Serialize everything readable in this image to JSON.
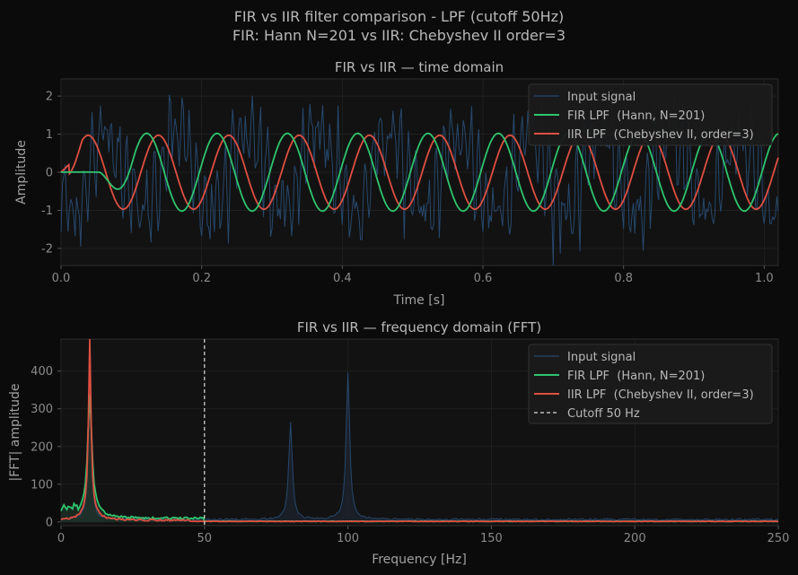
{
  "figure": {
    "suptitle_line1": "FIR vs IIR filter comparison - LPF (cutoff 50Hz)",
    "suptitle_line2": "FIR: Hann N=201  vs  IIR: Chebyshev II order=3"
  },
  "colors": {
    "background": "#0b0b0b",
    "axes_face": "#121212",
    "text": "#b8b8b8",
    "tick": "#8a8a8a",
    "input": "#27486d",
    "fir": "#2fc46e",
    "iir": "#df4f41",
    "cutoff": "#dddddd"
  },
  "chart_data": [
    {
      "type": "line",
      "title": "FIR vs IIR — time domain",
      "xlabel": "Time [s]",
      "ylabel": "Amplitude",
      "xlim": [
        0.0,
        1.02
      ],
      "ylim": [
        -2.45,
        2.45
      ],
      "xticks": [
        "0.0",
        "0.2",
        "0.4",
        "0.6",
        "0.8",
        "1.0"
      ],
      "xtick_values": [
        0.0,
        0.2,
        0.4,
        0.6,
        0.8,
        1.0
      ],
      "yticks": [
        "-2",
        "-1",
        "0",
        "1",
        "2"
      ],
      "ytick_values": [
        -2,
        -1,
        0,
        1,
        2
      ],
      "grid": true,
      "legend_position": "top-right",
      "signal_components": [
        {
          "freq_hz": 10,
          "amplitude": 1.0
        },
        {
          "freq_hz": 80,
          "amplitude": 0.5
        },
        {
          "freq_hz": 100,
          "amplitude": 0.7
        }
      ],
      "noise_std": 0.35,
      "fir_group_delay_s": 0.1,
      "series": [
        {
          "name": "Input signal",
          "color": "#27486d"
        },
        {
          "name": "FIR LPF  (Hann, N=201)",
          "color": "#2fc46e"
        },
        {
          "name": "IIR LPF  (Chebyshev II, order=3)",
          "color": "#df4f41"
        }
      ]
    },
    {
      "type": "line",
      "title": "FIR vs IIR — frequency domain (FFT)",
      "xlabel": "Frequency [Hz]",
      "ylabel": "|FFT| amplitude",
      "xlim": [
        0,
        250
      ],
      "ylim": [
        -10,
        485
      ],
      "xticks": [
        "0",
        "50",
        "100",
        "150",
        "200",
        "250"
      ],
      "xtick_values": [
        0,
        50,
        100,
        150,
        200,
        250
      ],
      "yticks": [
        "0",
        "100",
        "200",
        "300",
        "400"
      ],
      "ytick_values": [
        0,
        100,
        200,
        300,
        400
      ],
      "grid": true,
      "legend_position": "top-right",
      "cutoff_hz": 50,
      "peaks": [
        {
          "freq_hz": 10,
          "input": 465,
          "fir": 290,
          "iir": 458
        },
        {
          "freq_hz": 80,
          "input": 258,
          "fir": 0,
          "iir": 0
        },
        {
          "freq_hz": 100,
          "input": 388,
          "fir": 0,
          "iir": 0
        }
      ],
      "series": [
        {
          "name": "Input signal",
          "color": "#27486d"
        },
        {
          "name": "FIR LPF  (Hann, N=201)",
          "color": "#2fc46e"
        },
        {
          "name": "IIR LPF  (Chebyshev II, order=3)",
          "color": "#df4f41"
        },
        {
          "name": "Cutoff 50 Hz",
          "color": "#dddddd",
          "dashed": true
        }
      ]
    }
  ]
}
